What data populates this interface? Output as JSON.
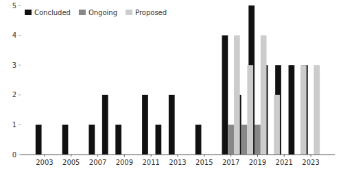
{
  "chart_data": {
    "type": "bar",
    "x": [
      2003,
      2005,
      2007,
      2008,
      2009,
      2011,
      2012,
      2013,
      2015,
      2017,
      2018,
      2019,
      2020,
      2021,
      2022,
      2023
    ],
    "series": [
      {
        "name": "Concluded",
        "color": "#111111",
        "values": [
          1,
          1,
          1,
          2,
          1,
          2,
          1,
          2,
          1,
          4,
          2,
          5,
          3,
          3,
          3,
          3
        ]
      },
      {
        "name": "Ongoing",
        "color": "#888888",
        "values": [
          0,
          0,
          0,
          0,
          0,
          0,
          0,
          0,
          0,
          1,
          1,
          1,
          0,
          0,
          0,
          0
        ]
      },
      {
        "name": "Proposed",
        "color": "#cccccc",
        "values": [
          0,
          0,
          0,
          0,
          0,
          0,
          0,
          0,
          0,
          4,
          3,
          4,
          2,
          0,
          3,
          3
        ]
      }
    ],
    "xlim": [
      2001.2,
      2024.8
    ],
    "xticks": [
      2003,
      2005,
      2007,
      2009,
      2011,
      2013,
      2015,
      2017,
      2019,
      2021,
      2023
    ],
    "ylim": [
      0,
      5
    ],
    "yticks": [
      0,
      1,
      2,
      3,
      4,
      5
    ],
    "grid": false,
    "legend": "upper left"
  }
}
